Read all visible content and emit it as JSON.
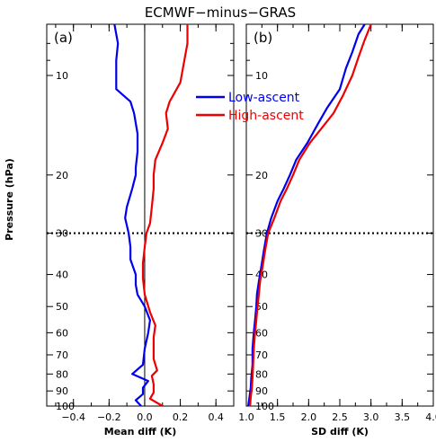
{
  "title": "ECMWF−minus−GRAS",
  "ylabel": "Pressure (hPa)",
  "legend": {
    "placement": "top-center",
    "items": [
      {
        "name": "Low-ascent",
        "color": "#0000ee"
      },
      {
        "name": "High-ascent",
        "color": "#ee0000"
      }
    ]
  },
  "chart_data": [
    {
      "type": "line",
      "panel_label": "(a)",
      "xlabel": "Mean diff (K)",
      "xlim": [
        -0.55,
        0.5
      ],
      "ylim": [
        100,
        7
      ],
      "yscale": "log",
      "yticks": [
        10,
        20,
        30,
        40,
        50,
        60,
        70,
        80,
        90,
        100
      ],
      "ytick_labels": [
        "10",
        "20",
        "30",
        "40",
        "50",
        "60",
        "70",
        "80",
        "90",
        "100"
      ],
      "xticks": [
        -0.4,
        -0.2,
        0.0,
        0.2,
        0.4
      ],
      "xtick_labels": [
        "−0.4",
        "−0.2",
        "0.0",
        "0.2",
        "0.4"
      ],
      "reference_hline": 30,
      "reference_vline": 0.0,
      "series": [
        {
          "name": "Low-ascent",
          "color": "#0000ee",
          "points": [
            [
              -0.17,
              7
            ],
            [
              -0.15,
              8
            ],
            [
              -0.16,
              9
            ],
            [
              -0.16,
              10
            ],
            [
              -0.16,
              11
            ],
            [
              -0.08,
              12
            ],
            [
              -0.06,
              13
            ],
            [
              -0.04,
              15
            ],
            [
              -0.04,
              17
            ],
            [
              -0.05,
              19
            ],
            [
              -0.05,
              20
            ],
            [
              -0.07,
              22
            ],
            [
              -0.1,
              25
            ],
            [
              -0.11,
              27
            ],
            [
              -0.09,
              30
            ],
            [
              -0.08,
              33
            ],
            [
              -0.08,
              36
            ],
            [
              -0.05,
              40
            ],
            [
              -0.05,
              43
            ],
            [
              -0.04,
              46
            ],
            [
              0.0,
              50
            ],
            [
              0.03,
              55
            ],
            [
              0.02,
              60
            ],
            [
              0.0,
              67
            ],
            [
              -0.01,
              75
            ],
            [
              -0.07,
              80
            ],
            [
              0.02,
              84
            ],
            [
              -0.01,
              88
            ],
            [
              -0.01,
              92
            ],
            [
              -0.05,
              96
            ],
            [
              -0.02,
              100
            ]
          ]
        },
        {
          "name": "High-ascent",
          "color": "#ee0000",
          "points": [
            [
              0.24,
              7
            ],
            [
              0.24,
              8
            ],
            [
              0.2,
              10.5
            ],
            [
              0.14,
              12
            ],
            [
              0.12,
              13
            ],
            [
              0.13,
              14.5
            ],
            [
              0.1,
              16
            ],
            [
              0.06,
              18
            ],
            [
              0.05,
              20
            ],
            [
              0.05,
              22
            ],
            [
              0.04,
              25
            ],
            [
              0.03,
              28
            ],
            [
              0.01,
              30
            ],
            [
              0.0,
              33
            ],
            [
              -0.01,
              37
            ],
            [
              -0.01,
              41
            ],
            [
              0.0,
              46
            ],
            [
              0.03,
              52
            ],
            [
              0.06,
              57
            ],
            [
              0.05,
              62
            ],
            [
              0.05,
              72
            ],
            [
              0.07,
              78
            ],
            [
              0.04,
              81
            ],
            [
              0.05,
              86
            ],
            [
              0.05,
              91
            ],
            [
              0.03,
              95
            ],
            [
              0.1,
              100
            ]
          ]
        }
      ]
    },
    {
      "type": "line",
      "panel_label": "(b)",
      "xlabel": "SD diff (K)",
      "xlim": [
        1.0,
        4.0
      ],
      "ylim": [
        100,
        7
      ],
      "yscale": "log",
      "yticks": [
        10,
        20,
        30,
        40,
        50,
        60,
        70,
        80,
        90,
        100
      ],
      "ytick_labels": [
        "10",
        "20",
        "30",
        "40",
        "50",
        "60",
        "70",
        "80",
        "90",
        "100"
      ],
      "xticks": [
        1.0,
        1.5,
        2.0,
        2.5,
        3.0,
        3.5,
        4.0
      ],
      "xtick_labels": [
        "1.0",
        "1.5",
        "2.0",
        "2.5",
        "3.0",
        "3.5",
        "4.0"
      ],
      "reference_hline": 30,
      "series": [
        {
          "name": "Low-ascent",
          "color": "#0000ee",
          "points": [
            [
              2.9,
              7
            ],
            [
              2.8,
              7.5
            ],
            [
              2.7,
              8.5
            ],
            [
              2.6,
              9.5
            ],
            [
              2.5,
              11
            ],
            [
              2.3,
              12.5
            ],
            [
              2.15,
              14
            ],
            [
              1.98,
              16
            ],
            [
              1.8,
              18
            ],
            [
              1.7,
              20
            ],
            [
              1.6,
              22
            ],
            [
              1.5,
              24
            ],
            [
              1.4,
              27
            ],
            [
              1.33,
              30
            ],
            [
              1.28,
              34
            ],
            [
              1.24,
              38
            ],
            [
              1.2,
              42
            ],
            [
              1.17,
              46
            ],
            [
              1.16,
              50
            ],
            [
              1.14,
              55
            ],
            [
              1.12,
              60
            ],
            [
              1.1,
              67
            ],
            [
              1.1,
              75
            ],
            [
              1.08,
              82
            ],
            [
              1.07,
              88
            ],
            [
              1.05,
              94
            ],
            [
              1.03,
              100
            ]
          ]
        },
        {
          "name": "High-ascent",
          "color": "#ee0000",
          "points": [
            [
              3.0,
              7
            ],
            [
              2.9,
              7.8
            ],
            [
              2.8,
              8.8
            ],
            [
              2.7,
              10
            ],
            [
              2.55,
              11.5
            ],
            [
              2.4,
              13
            ],
            [
              2.2,
              14.5
            ],
            [
              2.02,
              16
            ],
            [
              1.85,
              18
            ],
            [
              1.75,
              20
            ],
            [
              1.65,
              22
            ],
            [
              1.55,
              24
            ],
            [
              1.45,
              27
            ],
            [
              1.35,
              30
            ],
            [
              1.3,
              34
            ],
            [
              1.26,
              38
            ],
            [
              1.22,
              42
            ],
            [
              1.2,
              46
            ],
            [
              1.18,
              50
            ],
            [
              1.16,
              55
            ],
            [
              1.14,
              60
            ],
            [
              1.12,
              67
            ],
            [
              1.11,
              75
            ],
            [
              1.1,
              82
            ],
            [
              1.09,
              88
            ],
            [
              1.07,
              94
            ],
            [
              1.06,
              100
            ]
          ]
        }
      ]
    }
  ]
}
